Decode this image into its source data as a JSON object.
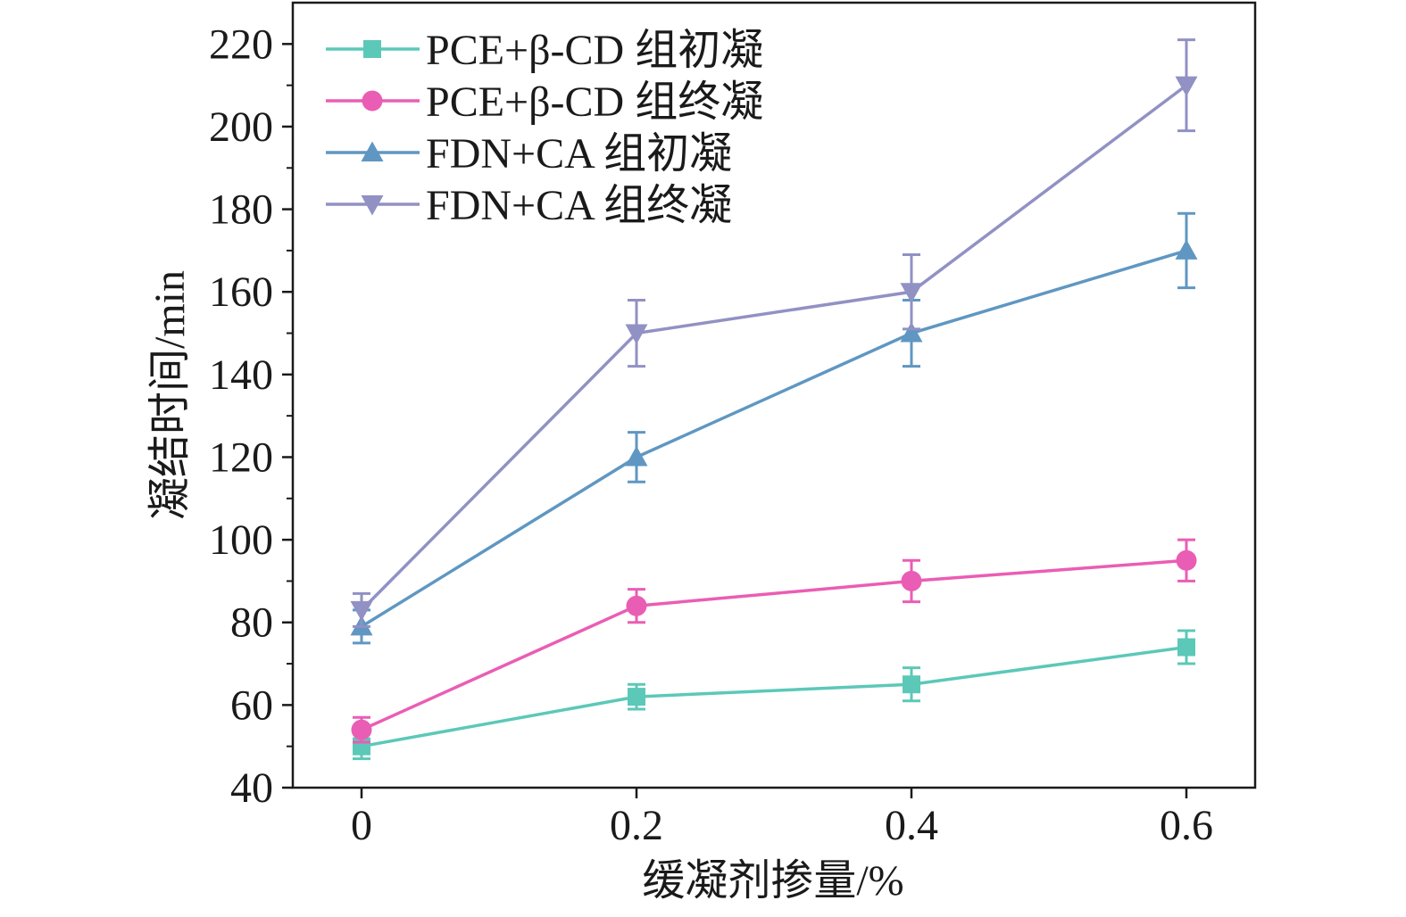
{
  "chart_data": {
    "type": "line",
    "title": "",
    "xlabel": "缓凝剂掺量/%",
    "ylabel": "凝结时间/min",
    "x": [
      0,
      0.2,
      0.4,
      0.6
    ],
    "x_tick_labels": [
      "0",
      "0.2",
      "0.4",
      "0.6"
    ],
    "xlim": [
      -0.05,
      0.65
    ],
    "ylim": [
      40,
      230
    ],
    "y_ticks": [
      40,
      60,
      80,
      100,
      120,
      140,
      160,
      180,
      200,
      220
    ],
    "grid": false,
    "legend_position": "top-left",
    "series": [
      {
        "name": "PCE+β-CD 组初凝",
        "marker": "square",
        "color": "#5cc8b8",
        "values": [
          50,
          62,
          65,
          74
        ],
        "errors": [
          3,
          3,
          4,
          4
        ]
      },
      {
        "name": "PCE+β-CD 组终凝",
        "marker": "circle",
        "color": "#ea5db4",
        "values": [
          54,
          84,
          90,
          95
        ],
        "errors": [
          3,
          4,
          5,
          5
        ]
      },
      {
        "name": "FDN+CA 组初凝",
        "marker": "triangle-up",
        "color": "#5f97c2",
        "values": [
          79,
          120,
          150,
          170
        ],
        "errors": [
          4,
          6,
          8,
          9
        ]
      },
      {
        "name": "FDN+CA 组终凝",
        "marker": "triangle-down",
        "color": "#9191c4",
        "values": [
          83,
          150,
          160,
          210
        ],
        "errors": [
          4,
          8,
          9,
          11
        ]
      }
    ]
  }
}
